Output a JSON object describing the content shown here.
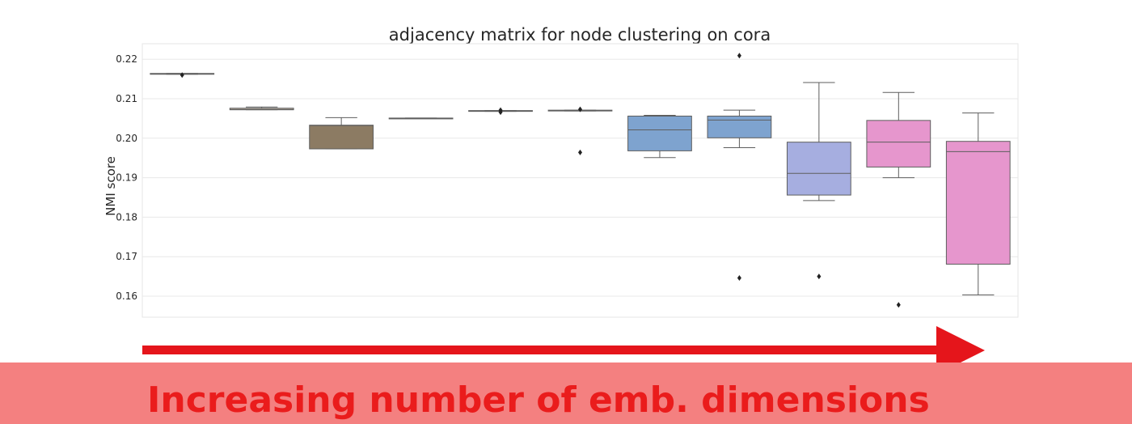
{
  "colors": {
    "arrow": "#e5151b",
    "banner_bg": "#f48080",
    "banner_text": "#ea1c1c",
    "grid": "#e8e8e8",
    "frame": "#e6e6e6"
  },
  "banner": {
    "text": "Increasing number of emb. dimensions"
  },
  "chart_data": {
    "type": "box",
    "title": "adjacency matrix for node clustering on cora",
    "xlabel": "",
    "ylabel": "NMI score",
    "ylim": [
      0.155,
      0.2245
    ],
    "yticks": [
      0.16,
      0.17,
      0.18,
      0.19,
      0.2,
      0.21,
      0.22
    ],
    "ytick_labels": [
      "0.16",
      "0.17",
      "0.18",
      "0.19",
      "0.20",
      "0.21",
      "0.22"
    ],
    "grid": true,
    "boxes": [
      {
        "q1": 0.2162,
        "median": 0.2163,
        "q3": 0.2164,
        "whisker_low": 0.2162,
        "whisker_high": 0.2164,
        "outliers": [
          0.216
        ],
        "color": "#f0c08e"
      },
      {
        "q1": 0.2072,
        "median": 0.2073,
        "q3": 0.2076,
        "whisker_low": 0.2072,
        "whisker_high": 0.2079,
        "outliers": [],
        "color": "#f2e0c8"
      },
      {
        "q1": 0.1973,
        "median": 0.2032,
        "q3": 0.2033,
        "whisker_low": 0.1973,
        "whisker_high": 0.2052,
        "outliers": [],
        "color": "#8c7b63"
      },
      {
        "q1": 0.205,
        "median": 0.205,
        "q3": 0.2051,
        "whisker_low": 0.205,
        "whisker_high": 0.2051,
        "outliers": [],
        "color": "#e6e2da"
      },
      {
        "q1": 0.2068,
        "median": 0.2069,
        "q3": 0.207,
        "whisker_low": 0.2068,
        "whisker_high": 0.207,
        "outliers": [
          0.2066,
          0.2071
        ],
        "color": "#cfd9ea"
      },
      {
        "q1": 0.2069,
        "median": 0.207,
        "q3": 0.2071,
        "whisker_low": 0.2069,
        "whisker_high": 0.2071,
        "outliers": [
          0.2073,
          0.1964
        ],
        "color": "#cfd9ea"
      },
      {
        "q1": 0.1968,
        "median": 0.2021,
        "q3": 0.2056,
        "whisker_low": 0.1951,
        "whisker_high": 0.2058,
        "outliers": [],
        "color": "#7ea3cf"
      },
      {
        "q1": 0.2001,
        "median": 0.2046,
        "q3": 0.2056,
        "whisker_low": 0.1976,
        "whisker_high": 0.2071,
        "outliers": [
          0.2209,
          0.1646
        ],
        "color": "#7ea3cf"
      },
      {
        "q1": 0.1856,
        "median": 0.1911,
        "q3": 0.199,
        "whisker_low": 0.1842,
        "whisker_high": 0.2141,
        "outliers": [
          0.165
        ],
        "color": "#a6aee0"
      },
      {
        "q1": 0.1927,
        "median": 0.199,
        "q3": 0.2045,
        "whisker_low": 0.19,
        "whisker_high": 0.2116,
        "outliers": [
          0.1578
        ],
        "color": "#e696cd"
      },
      {
        "q1": 0.1681,
        "median": 0.1966,
        "q3": 0.1992,
        "whisker_low": 0.1603,
        "whisker_high": 0.2064,
        "outliers": [],
        "color": "#e696cd"
      }
    ]
  }
}
